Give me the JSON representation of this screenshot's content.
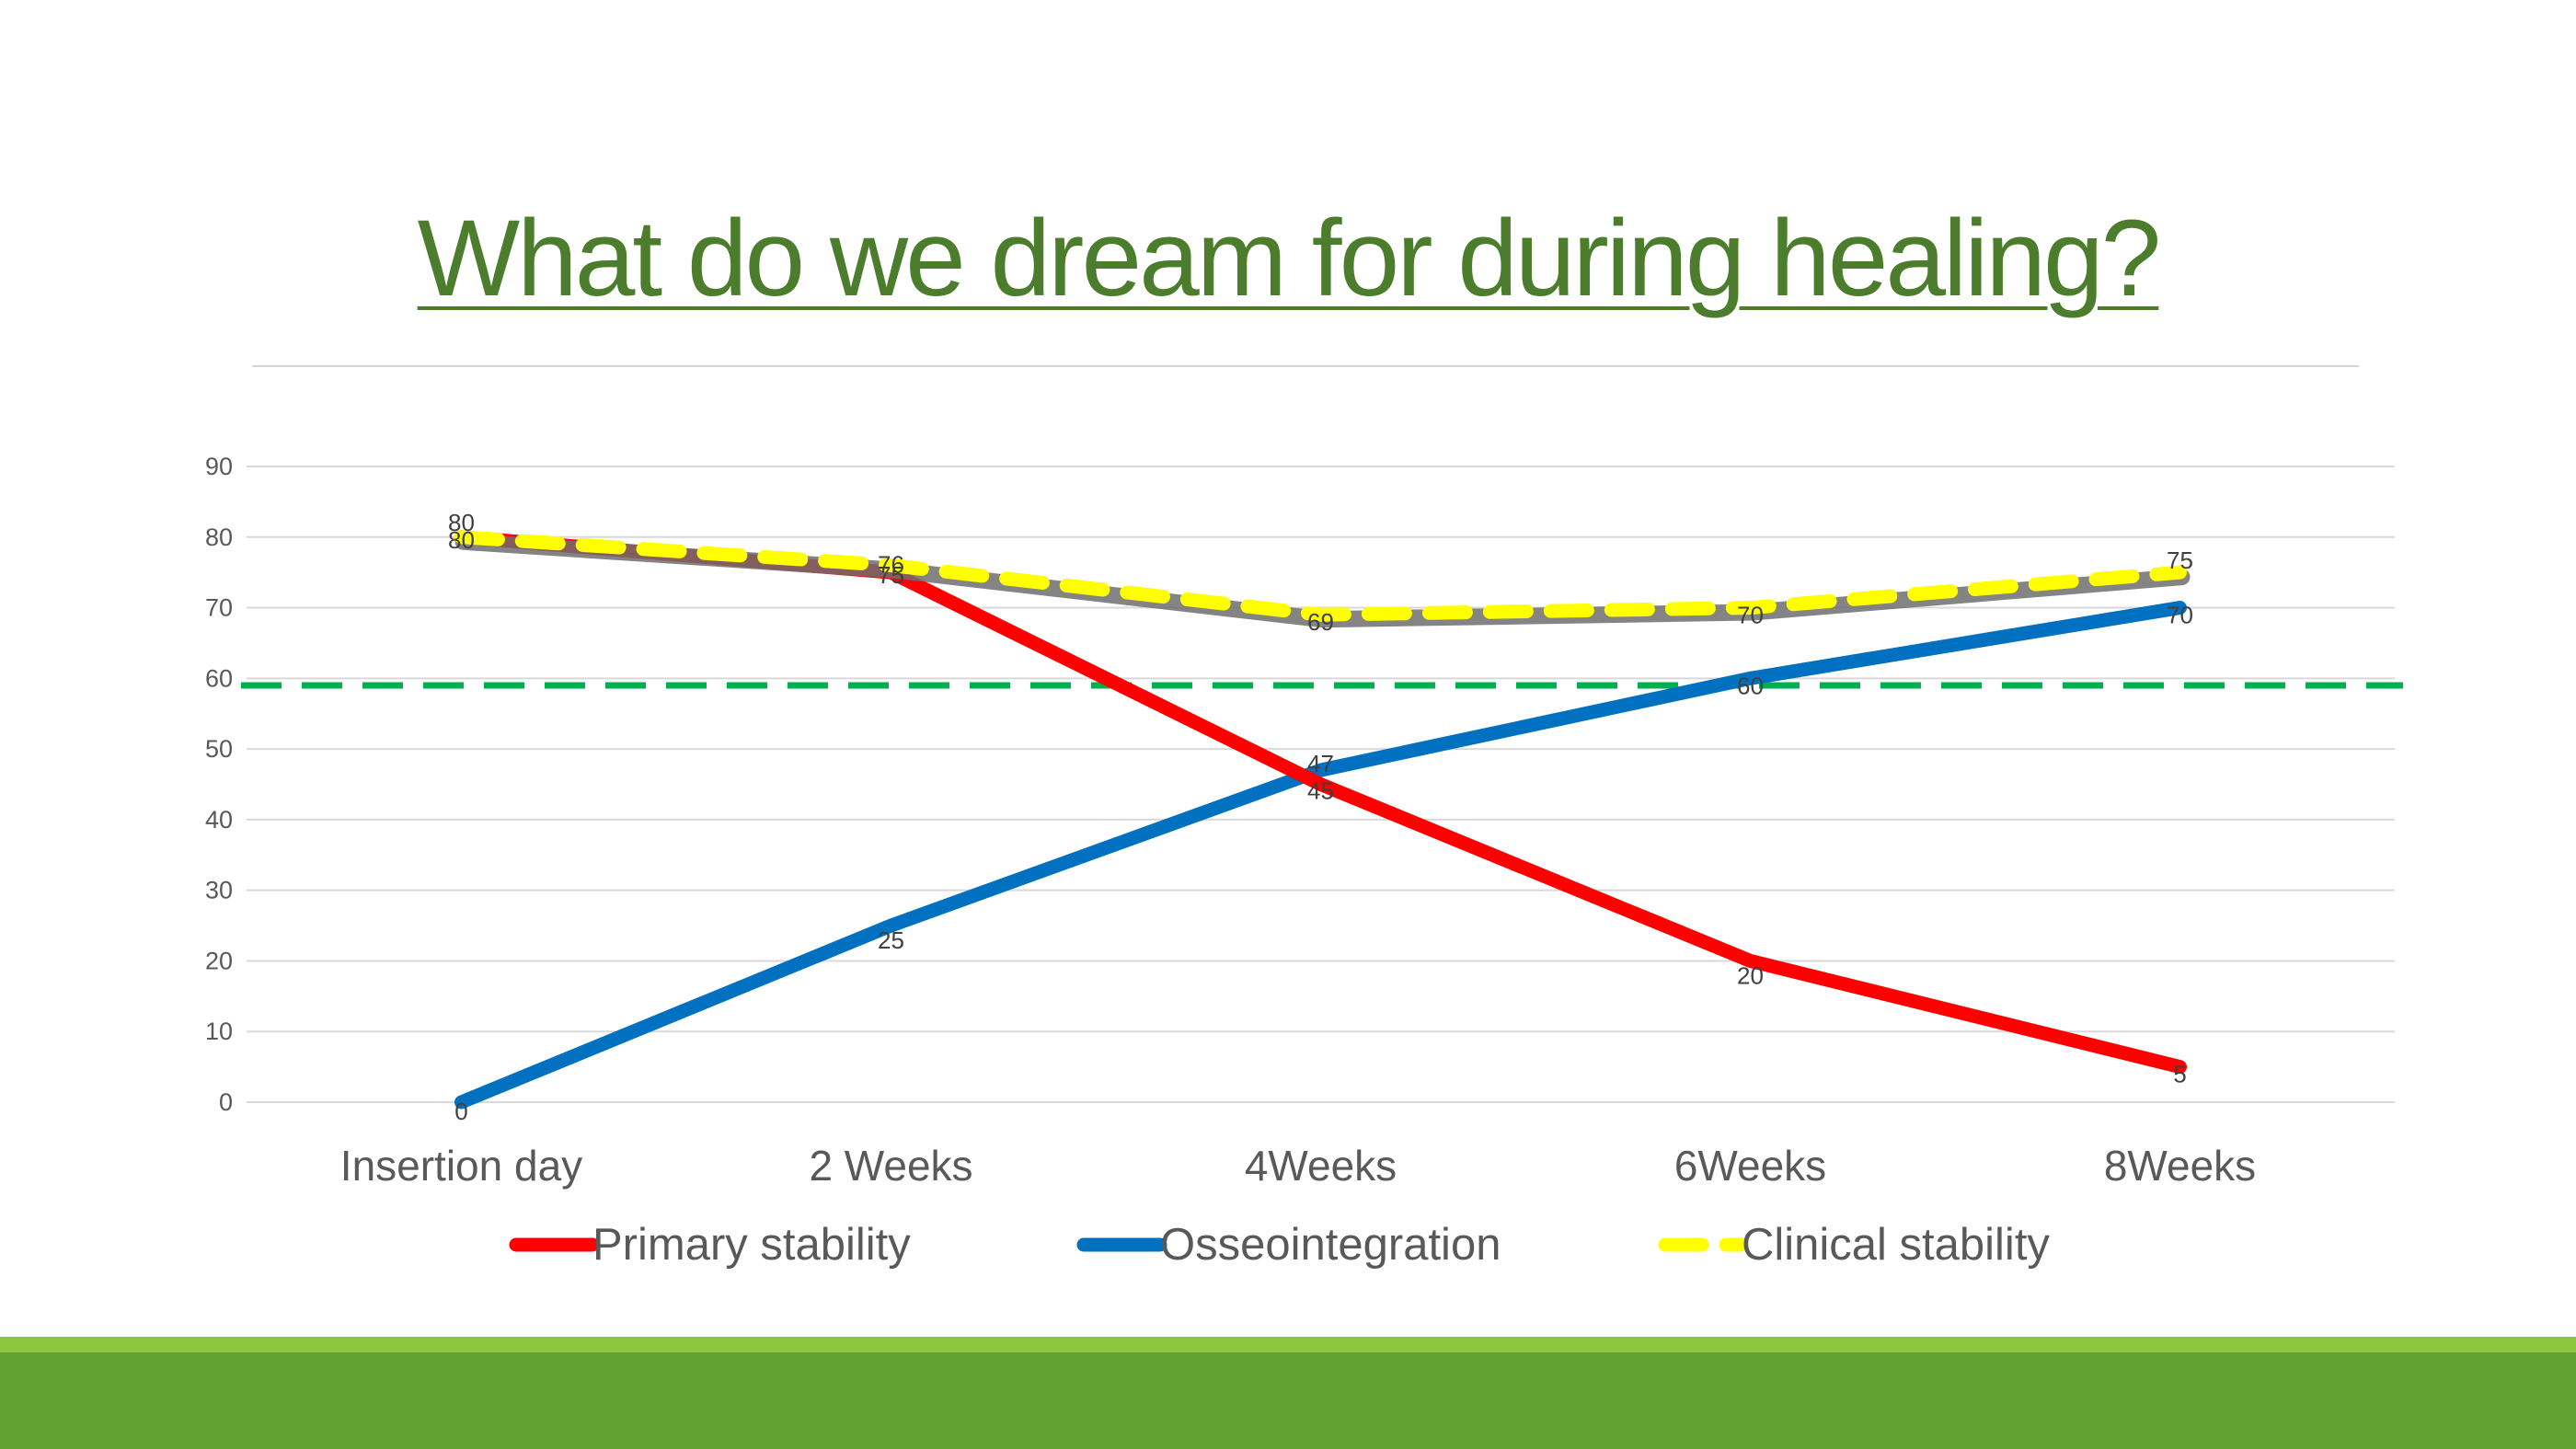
{
  "title": "What do we dream for during healing?",
  "colors": {
    "title": "#4b7d2c",
    "primary_stability": "#ff0000",
    "osseointegration": "#0070c0",
    "clinical_stability": "#ffff00",
    "reference_line": "#00b050",
    "footer_light": "#8cc63e",
    "footer_dark": "#62a132"
  },
  "chart_data": {
    "type": "line",
    "categories": [
      "Insertion day",
      "2 Weeks",
      "4Weeks",
      "6Weeks",
      "8Weeks"
    ],
    "series": [
      {
        "name": "Primary stability",
        "values": [
          80,
          75,
          45,
          20,
          5
        ],
        "color": "#ff0000",
        "style": "solid"
      },
      {
        "name": "Osseointegration",
        "values": [
          0,
          25,
          47,
          60,
          70
        ],
        "color": "#0070c0",
        "style": "solid"
      },
      {
        "name": "Clinical stability",
        "values": [
          80,
          76,
          69,
          70,
          75
        ],
        "color": "#ffff00",
        "style": "dashed"
      }
    ],
    "yticks": [
      0,
      10,
      20,
      30,
      40,
      50,
      60,
      70,
      80,
      90
    ],
    "ylim": [
      0,
      90
    ],
    "reference_line": {
      "value": 59,
      "color": "#00b050",
      "style": "dashed"
    },
    "grid": true,
    "legend": "bottom",
    "data_labels": true
  }
}
